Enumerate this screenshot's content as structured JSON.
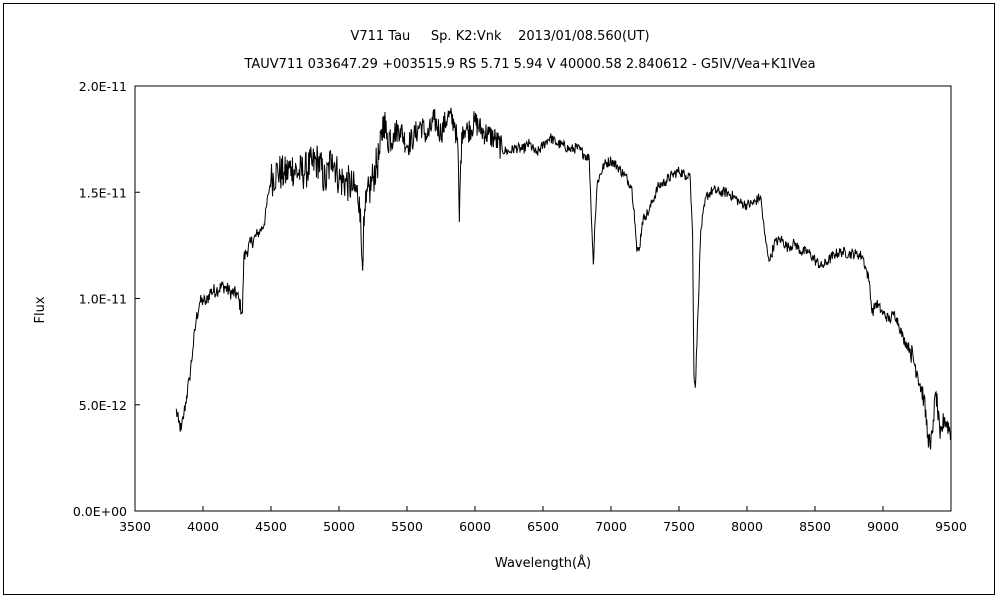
{
  "chart_data": {
    "type": "line",
    "title": "V711 Tau     Sp. K2:Vnk    2013/01/08.560(UT)",
    "subtitle": "TAUV711 033647.29 +003515.9 RS 5.71 5.94 V 40000.58 2.840612 - G5IV/Vea+K1IVea",
    "xlabel": "Wavelength(Å)",
    "ylabel": "Flux",
    "xlim": [
      3500,
      9500
    ],
    "ylim": [
      0,
      2e-11
    ],
    "xticks": [
      3500,
      4000,
      4500,
      5000,
      5500,
      6000,
      6500,
      7000,
      7500,
      8000,
      8500,
      9000,
      9500
    ],
    "xtick_labels": [
      "3500",
      "4000",
      "4500",
      "5000",
      "5500",
      "6000",
      "6500",
      "7000",
      "7500",
      "8000",
      "8500",
      "9000",
      "9500"
    ],
    "yticks": [
      0,
      5e-12,
      1e-11,
      1.5e-11,
      2e-11
    ],
    "ytick_labels": [
      "0.0E+00",
      "5.0E-12",
      "1.0E-11",
      "1.5E-11",
      "2.0E-11"
    ],
    "grid": false,
    "legend": "none",
    "line_color": "#000000",
    "series": [
      {
        "x": [
          3800,
          3820,
          3840,
          3860,
          3880,
          3900,
          3925,
          3950,
          3975,
          4000,
          4025,
          4050,
          4100,
          4150,
          4200,
          4250,
          4290,
          4300,
          4320,
          4350,
          4400,
          4450,
          4480,
          4500,
          4550,
          4600,
          4650,
          4700,
          4750,
          4800,
          4850,
          4900,
          4950,
          5000,
          5050,
          5100,
          5150,
          5170,
          5185,
          5200,
          5250,
          5300,
          5330,
          5350,
          5400,
          5450,
          5500,
          5550,
          5600,
          5650,
          5700,
          5750,
          5800,
          5850,
          5875,
          5885,
          5895,
          5910,
          5950,
          6000,
          6050,
          6100,
          6150,
          6200,
          6250,
          6300,
          6350,
          6400,
          6450,
          6500,
          6550,
          6600,
          6650,
          6700,
          6750,
          6800,
          6840,
          6860,
          6870,
          6880,
          6900,
          6950,
          7000,
          7050,
          7100,
          7150,
          7170,
          7190,
          7210,
          7230,
          7250,
          7280,
          7300,
          7350,
          7400,
          7450,
          7500,
          7550,
          7580,
          7600,
          7610,
          7620,
          7640,
          7660,
          7700,
          7750,
          7800,
          7850,
          7900,
          7950,
          8000,
          8050,
          8100,
          8130,
          8150,
          8170,
          8200,
          8250,
          8300,
          8350,
          8400,
          8450,
          8500,
          8550,
          8600,
          8650,
          8700,
          8750,
          8800,
          8850,
          8870,
          8900,
          8920,
          8950,
          9000,
          9050,
          9080,
          9100,
          9150,
          9200,
          9250,
          9300,
          9330,
          9350,
          9370,
          9390,
          9420,
          9450,
          9500
        ],
        "y": [
          4.8e-12,
          4.2e-12,
          3.8e-12,
          4.6e-12,
          5.4e-12,
          6.2e-12,
          7.6e-12,
          9e-12,
          9.8e-12,
          9.9e-12,
          9.8e-12,
          1.03e-11,
          1.04e-11,
          1.06e-11,
          1.03e-11,
          1.02e-11,
          9.3e-12,
          1.19e-11,
          1.22e-11,
          1.26e-11,
          1.3e-11,
          1.35e-11,
          1.49e-11,
          1.56e-11,
          1.6e-11,
          1.58e-11,
          1.62e-11,
          1.59e-11,
          1.6e-11,
          1.63e-11,
          1.65e-11,
          1.54e-11,
          1.68e-11,
          1.56e-11,
          1.55e-11,
          1.52e-11,
          1.48e-11,
          1.18e-11,
          1.34e-11,
          1.45e-11,
          1.57e-11,
          1.68e-11,
          1.86e-11,
          1.75e-11,
          1.78e-11,
          1.8e-11,
          1.72e-11,
          1.76e-11,
          1.82e-11,
          1.76e-11,
          1.84e-11,
          1.78e-11,
          1.86e-11,
          1.83e-11,
          1.7e-11,
          1.36e-11,
          1.65e-11,
          1.81e-11,
          1.79e-11,
          1.83e-11,
          1.79e-11,
          1.77e-11,
          1.75e-11,
          1.7e-11,
          1.69e-11,
          1.71e-11,
          1.7e-11,
          1.73e-11,
          1.68e-11,
          1.72e-11,
          1.76e-11,
          1.73e-11,
          1.72e-11,
          1.7e-11,
          1.71e-11,
          1.68e-11,
          1.66e-11,
          1.32e-11,
          1.16e-11,
          1.33e-11,
          1.55e-11,
          1.63e-11,
          1.65e-11,
          1.62e-11,
          1.58e-11,
          1.53e-11,
          1.42e-11,
          1.22e-11,
          1.24e-11,
          1.36e-11,
          1.39e-11,
          1.41e-11,
          1.45e-11,
          1.53e-11,
          1.55e-11,
          1.58e-11,
          1.6e-11,
          1.58e-11,
          1.59e-11,
          1.3e-11,
          6.4e-12,
          5.8e-12,
          9.4e-12,
          1.32e-11,
          1.48e-11,
          1.51e-11,
          1.5e-11,
          1.5e-11,
          1.48e-11,
          1.45e-11,
          1.44e-11,
          1.45e-11,
          1.48e-11,
          1.3e-11,
          1.22e-11,
          1.18e-11,
          1.26e-11,
          1.28e-11,
          1.24e-11,
          1.26e-11,
          1.22e-11,
          1.22e-11,
          1.18e-11,
          1.15e-11,
          1.18e-11,
          1.21e-11,
          1.22e-11,
          1.21e-11,
          1.21e-11,
          1.2e-11,
          1.15e-11,
          1.08e-11,
          9.3e-12,
          9.8e-12,
          9.3e-12,
          9e-12,
          9.3e-12,
          9.1e-12,
          8.1e-12,
          7.6e-12,
          6.6e-12,
          5.3e-12,
          3.6e-12,
          2.9e-12,
          4.3e-12,
          5.6e-12,
          3.4e-12,
          4.4e-12,
          3.7e-12
        ]
      }
    ]
  }
}
